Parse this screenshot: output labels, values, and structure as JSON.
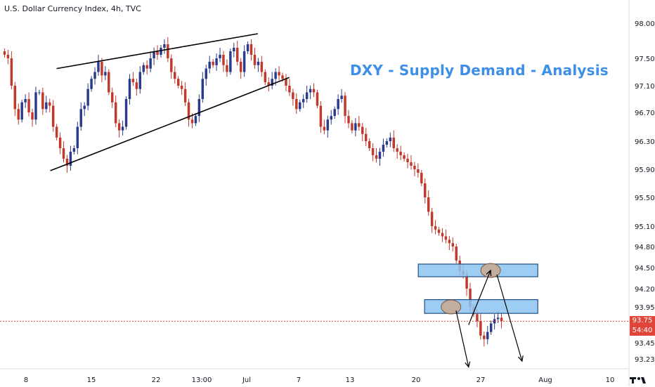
{
  "header": {
    "title": "U.S. Dollar Currency Index, 4h, TVC"
  },
  "annotation": {
    "text": "DXY - Supply Demand - Analysis"
  },
  "price_tags": {
    "last_price": "93.75",
    "countdown": "54:40"
  },
  "colors": {
    "up": "#2a3a8c",
    "down": "#c0392b",
    "zone_fill": "#8cc4f0",
    "zone_stroke": "#1e4f8a",
    "circle": "#c8a891",
    "price_line": "#e0453a",
    "annotation": "#3d8fe8"
  },
  "chart_data": {
    "type": "candlestick",
    "title": "U.S. Dollar Currency Index, 4h, TVC",
    "ylim": [
      93.0,
      98.2
    ],
    "y_ticks": [
      "98.00",
      "97.50",
      "97.10",
      "96.70",
      "96.30",
      "95.90",
      "95.50",
      "95.10",
      "94.80",
      "94.50",
      "94.20",
      "93.95",
      "93.45",
      "93.23"
    ],
    "x_ticks": [
      "8",
      "15",
      "22",
      "13:00",
      "Jul",
      "7",
      "13",
      "20",
      "27",
      "Aug",
      "10"
    ],
    "last_price": 93.75,
    "trendlines": [
      {
        "name": "wedge-upper",
        "from": [
          0.09,
          97.35
        ],
        "to": [
          0.41,
          97.85
        ]
      },
      {
        "name": "wedge-lower",
        "from": [
          0.08,
          95.88
        ],
        "to": [
          0.46,
          97.22
        ]
      }
    ],
    "zones": [
      {
        "name": "supply-zone-upper",
        "x_from": 0.665,
        "x_to": 0.855,
        "y_low": 94.37,
        "y_high": 94.55
      },
      {
        "name": "supply-zone-lower",
        "x_from": 0.675,
        "x_to": 0.855,
        "y_low": 93.86,
        "y_high": 94.05
      }
    ],
    "circles": [
      {
        "name": "target-circle-upper",
        "x": 0.78,
        "y": 94.46
      },
      {
        "name": "target-circle-lower",
        "x": 0.717,
        "y": 93.95
      }
    ],
    "projection_arrows": [
      {
        "name": "arrow-down-1",
        "from": [
          0.725,
          93.9
        ],
        "to": [
          0.745,
          93.12
        ]
      },
      {
        "name": "arrow-up",
        "from": [
          0.745,
          93.7
        ],
        "to": [
          0.78,
          94.46
        ]
      },
      {
        "name": "arrow-down-2",
        "from": [
          0.79,
          94.4
        ],
        "to": [
          0.83,
          93.2
        ]
      }
    ],
    "close_series": [
      97.55,
      97.5,
      97.1,
      96.75,
      96.6,
      96.85,
      96.9,
      96.7,
      96.6,
      97.0,
      97.0,
      96.75,
      96.85,
      96.8,
      96.5,
      96.35,
      96.2,
      96.05,
      95.95,
      96.15,
      96.2,
      96.5,
      96.75,
      96.8,
      97.05,
      97.2,
      97.3,
      97.45,
      97.25,
      97.3,
      97.0,
      96.85,
      96.55,
      96.45,
      96.5,
      96.9,
      97.2,
      97.15,
      97.05,
      97.3,
      97.4,
      97.35,
      97.5,
      97.6,
      97.55,
      97.65,
      97.7,
      97.5,
      97.3,
      97.2,
      97.1,
      97.05,
      96.85,
      96.6,
      96.55,
      96.65,
      96.9,
      97.2,
      97.35,
      97.45,
      97.4,
      97.5,
      97.55,
      97.4,
      97.3,
      97.6,
      97.65,
      97.45,
      97.3,
      97.6,
      97.7,
      97.55,
      97.4,
      97.45,
      97.3,
      97.15,
      97.1,
      97.2,
      97.3,
      97.25,
      97.2,
      97.1,
      97.0,
      96.9,
      96.75,
      96.85,
      96.9,
      97.0,
      97.05,
      97.0,
      96.8,
      96.5,
      96.45,
      96.6,
      96.65,
      96.75,
      96.9,
      96.95,
      96.65,
      96.55,
      96.45,
      96.55,
      96.5,
      96.4,
      96.3,
      96.2,
      96.1,
      96.05,
      96.15,
      96.25,
      96.3,
      96.35,
      96.2,
      96.15,
      96.1,
      96.05,
      96.0,
      95.95,
      95.9,
      95.85,
      95.7,
      95.5,
      95.3,
      95.1,
      95.05,
      95.0,
      94.95,
      94.9,
      94.85,
      94.8,
      94.6,
      94.45,
      94.4,
      94.2,
      93.95,
      93.85,
      93.75,
      93.55,
      93.5,
      93.6,
      93.72,
      93.78,
      93.8,
      93.75
    ]
  }
}
